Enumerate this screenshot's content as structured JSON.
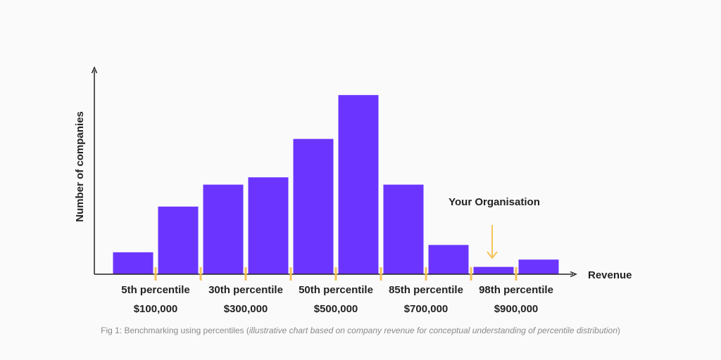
{
  "chart_data": {
    "type": "bar",
    "ylabel": "Number of companies",
    "xlabel": "Revenue",
    "ylim": [
      0,
      100
    ],
    "values": [
      12,
      37,
      49,
      53,
      74,
      98,
      49,
      16,
      4,
      8
    ],
    "colors": {
      "bar": "#6b35ff",
      "tick": "#f4c35a",
      "axis": "#222222",
      "arrow": "#f4c35a"
    },
    "tick_labels": [
      {
        "percentile": "5th percentile",
        "revenue": "$100,000"
      },
      {
        "percentile": "30th percentile",
        "revenue": "$300,000"
      },
      {
        "percentile": "50th percentile",
        "revenue": "$500,000"
      },
      {
        "percentile": "85th percentile",
        "revenue": "$700,000"
      },
      {
        "percentile": "98th percentile",
        "revenue": "$900,000"
      }
    ],
    "annotation": {
      "text": "Your Organisation",
      "target_bar_index": 8,
      "icon": "down-arrow-icon"
    }
  },
  "caption": {
    "prefix": "Fig 1: Benchmarking using percentiles (",
    "italic": "illustrative chart based on company revenue for conceptual understanding of percentile distribution",
    "suffix": ")"
  }
}
